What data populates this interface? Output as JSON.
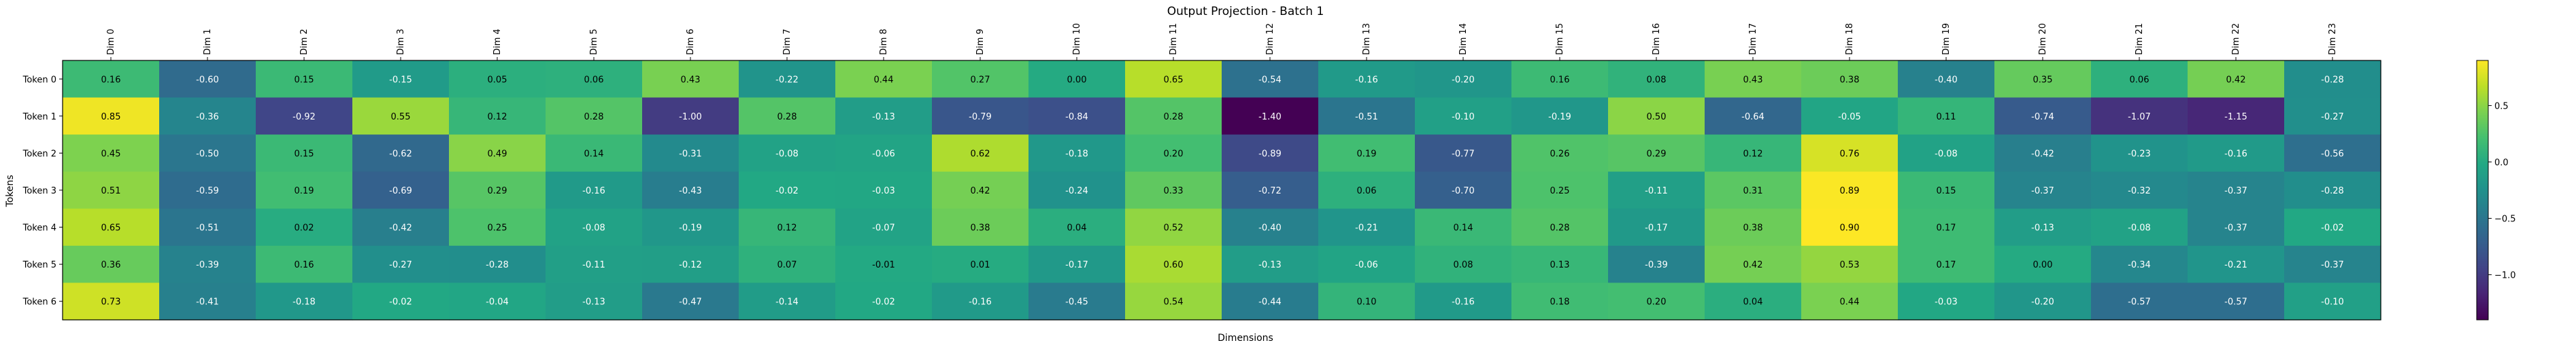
{
  "chart_data": {
    "type": "heatmap",
    "title": "Output Projection - Batch 1",
    "xlabel": "Dimensions",
    "ylabel": "Tokens",
    "columns": [
      "Dim 0",
      "Dim 1",
      "Dim 2",
      "Dim 3",
      "Dim 4",
      "Dim 5",
      "Dim 6",
      "Dim 7",
      "Dim 8",
      "Dim 9",
      "Dim 10",
      "Dim 11",
      "Dim 12",
      "Dim 13",
      "Dim 14",
      "Dim 15",
      "Dim 16",
      "Dim 17",
      "Dim 18",
      "Dim 19",
      "Dim 20",
      "Dim 21",
      "Dim 22",
      "Dim 23"
    ],
    "rows": [
      "Token 0",
      "Token 1",
      "Token 2",
      "Token 3",
      "Token 4",
      "Token 5",
      "Token 6"
    ],
    "values": [
      [
        0.16,
        -0.6,
        0.15,
        -0.15,
        0.05,
        0.06,
        0.43,
        -0.22,
        0.44,
        0.27,
        -0.0,
        0.65,
        -0.54,
        -0.16,
        -0.2,
        0.16,
        0.08,
        0.43,
        0.38,
        -0.4,
        0.35,
        0.06,
        0.42,
        -0.28
      ],
      [
        0.85,
        -0.36,
        -0.92,
        0.55,
        0.12,
        0.28,
        -1.0,
        0.28,
        -0.13,
        -0.79,
        -0.84,
        0.28,
        -1.4,
        -0.51,
        -0.1,
        -0.19,
        0.5,
        -0.64,
        -0.05,
        0.11,
        -0.74,
        -1.07,
        -1.15,
        -0.27
      ],
      [
        0.45,
        -0.5,
        0.15,
        -0.62,
        0.49,
        0.14,
        -0.31,
        -0.08,
        -0.06,
        0.62,
        -0.18,
        0.2,
        -0.89,
        0.19,
        -0.77,
        0.26,
        0.29,
        0.12,
        0.76,
        -0.08,
        -0.42,
        -0.23,
        -0.16,
        -0.56
      ],
      [
        0.51,
        -0.59,
        0.19,
        -0.69,
        0.29,
        -0.16,
        -0.43,
        -0.02,
        -0.03,
        0.42,
        -0.24,
        0.33,
        -0.72,
        0.06,
        -0.7,
        0.25,
        -0.11,
        0.31,
        0.89,
        0.15,
        -0.37,
        -0.32,
        -0.37,
        -0.28
      ],
      [
        0.65,
        -0.51,
        0.02,
        -0.42,
        0.25,
        -0.08,
        -0.19,
        0.12,
        -0.07,
        0.38,
        0.04,
        0.52,
        -0.4,
        -0.21,
        0.14,
        0.28,
        -0.17,
        0.38,
        0.9,
        0.17,
        -0.13,
        -0.08,
        -0.37,
        -0.02
      ],
      [
        0.36,
        -0.39,
        0.16,
        -0.27,
        -0.28,
        -0.11,
        -0.12,
        0.07,
        -0.01,
        0.01,
        -0.17,
        0.6,
        -0.13,
        -0.06,
        0.08,
        0.13,
        -0.39,
        0.42,
        0.53,
        0.17,
        -0.0,
        -0.34,
        -0.21,
        -0.37
      ],
      [
        0.73,
        -0.41,
        -0.18,
        -0.02,
        -0.04,
        -0.13,
        -0.47,
        -0.14,
        -0.02,
        -0.16,
        -0.45,
        0.54,
        -0.44,
        0.1,
        -0.16,
        0.18,
        0.2,
        0.04,
        0.44,
        -0.03,
        -0.2,
        -0.57,
        -0.57,
        -0.1
      ]
    ],
    "vmin": -1.4,
    "vmax": 0.9,
    "colormap": "viridis",
    "colorbar_ticks": [
      0.5,
      0.0,
      -0.5,
      -1.0
    ],
    "colorbar_tick_labels": [
      "0.5",
      "0.0",
      "−0.5",
      "−1.0"
    ],
    "grid": false,
    "legend": "colorbar-right"
  }
}
